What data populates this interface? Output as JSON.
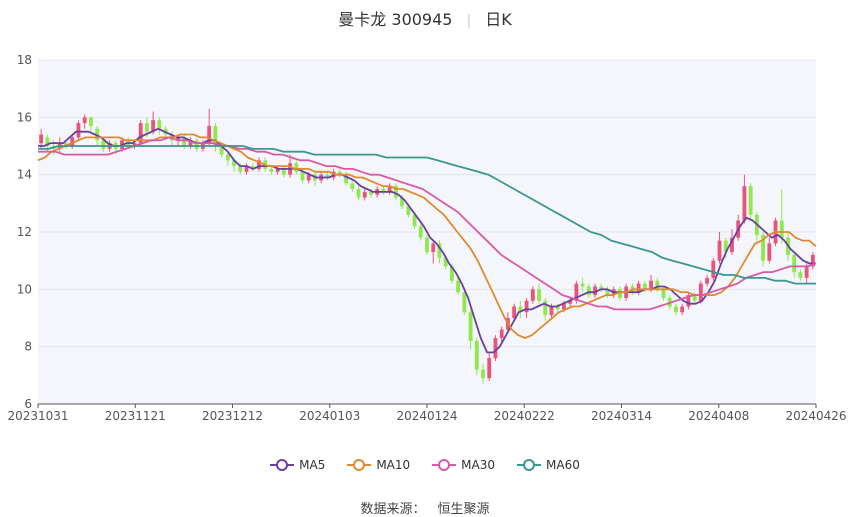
{
  "title": {
    "name": "曼卡龙 300945",
    "period": "日K"
  },
  "chart_data": {
    "type": "candlestick",
    "x_ticks": [
      "20231031",
      "20231121",
      "20231212",
      "20240103",
      "20240124",
      "20240222",
      "20240314",
      "20240408",
      "20240426"
    ],
    "ylim": [
      6,
      18
    ],
    "y_ticks": [
      "6",
      "8",
      "10",
      "12",
      "14",
      "16",
      "18"
    ],
    "grid": true,
    "legend_position": "bottom",
    "up_color": "#e8557b",
    "down_color": "#8ee84e",
    "candles": [
      [
        15.1,
        15.4,
        15.6,
        14.9
      ],
      [
        15.3,
        15.0,
        15.4,
        14.8
      ],
      [
        15.0,
        14.9,
        15.2,
        14.7
      ],
      [
        14.9,
        15.1,
        15.3,
        14.8
      ],
      [
        15.1,
        15.0,
        15.2,
        14.9
      ],
      [
        15.0,
        15.3,
        15.4,
        14.9
      ],
      [
        15.3,
        15.8,
        15.9,
        15.2
      ],
      [
        15.8,
        16.0,
        16.1,
        15.6
      ],
      [
        16.0,
        15.7,
        16.0,
        15.5
      ],
      [
        15.6,
        15.2,
        15.7,
        15.0
      ],
      [
        15.2,
        14.9,
        15.3,
        14.8
      ],
      [
        14.9,
        15.1,
        15.2,
        14.8
      ],
      [
        15.1,
        14.9,
        15.2,
        14.7
      ],
      [
        14.9,
        15.2,
        15.3,
        14.8
      ],
      [
        15.2,
        15.0,
        15.3,
        14.9
      ],
      [
        15.0,
        15.1,
        15.2,
        14.9
      ],
      [
        15.1,
        15.8,
        15.9,
        15.0
      ],
      [
        15.8,
        15.5,
        16.0,
        15.3
      ],
      [
        15.5,
        15.9,
        16.2,
        15.4
      ],
      [
        15.9,
        15.6,
        16.0,
        15.4
      ],
      [
        15.6,
        15.4,
        15.7,
        15.2
      ],
      [
        15.4,
        15.2,
        15.5,
        15.0
      ],
      [
        15.2,
        15.3,
        15.4,
        15.0
      ],
      [
        15.3,
        15.0,
        15.4,
        14.9
      ],
      [
        15.0,
        15.2,
        15.3,
        14.9
      ],
      [
        15.2,
        14.9,
        15.3,
        14.8
      ],
      [
        14.9,
        15.1,
        15.2,
        14.8
      ],
      [
        15.1,
        15.7,
        16.3,
        15.0
      ],
      [
        15.7,
        15.0,
        15.8,
        14.8
      ],
      [
        15.0,
        14.7,
        15.1,
        14.6
      ],
      [
        14.7,
        14.5,
        14.8,
        14.3
      ],
      [
        14.5,
        14.3,
        14.6,
        14.1
      ],
      [
        14.3,
        14.1,
        14.4,
        14.0
      ],
      [
        14.1,
        14.3,
        14.4,
        14.0
      ],
      [
        14.3,
        14.2,
        14.4,
        14.1
      ],
      [
        14.2,
        14.5,
        14.6,
        14.1
      ],
      [
        14.5,
        14.2,
        14.6,
        14.1
      ],
      [
        14.2,
        14.1,
        14.3,
        14.0
      ],
      [
        14.1,
        14.2,
        14.3,
        14.0
      ],
      [
        14.2,
        14.0,
        14.3,
        13.9
      ],
      [
        14.0,
        14.4,
        14.7,
        13.9
      ],
      [
        14.4,
        14.1,
        14.5,
        14.0
      ],
      [
        14.1,
        13.8,
        14.2,
        13.7
      ],
      [
        13.8,
        14.0,
        14.1,
        13.7
      ],
      [
        14.0,
        13.8,
        14.1,
        13.6
      ],
      [
        13.8,
        14.0,
        14.1,
        13.7
      ],
      [
        14.0,
        13.9,
        14.1,
        13.8
      ],
      [
        13.9,
        14.1,
        14.2,
        13.8
      ],
      [
        14.1,
        14.0,
        14.2,
        13.9
      ],
      [
        14.0,
        13.7,
        14.1,
        13.6
      ],
      [
        13.7,
        13.5,
        13.8,
        13.4
      ],
      [
        13.5,
        13.2,
        13.6,
        13.1
      ],
      [
        13.2,
        13.4,
        13.5,
        13.1
      ],
      [
        13.4,
        13.3,
        13.5,
        13.2
      ],
      [
        13.3,
        13.5,
        13.6,
        13.2
      ],
      [
        13.5,
        13.4,
        13.6,
        13.3
      ],
      [
        13.4,
        13.6,
        13.7,
        13.3
      ],
      [
        13.6,
        13.2,
        13.7,
        13.1
      ],
      [
        13.2,
        12.9,
        13.3,
        12.8
      ],
      [
        12.9,
        12.6,
        13.0,
        12.5
      ],
      [
        12.6,
        12.2,
        12.7,
        12.1
      ],
      [
        12.2,
        11.8,
        12.3,
        11.7
      ],
      [
        11.8,
        11.3,
        11.9,
        11.2
      ],
      [
        11.3,
        11.6,
        11.7,
        10.9
      ],
      [
        11.6,
        11.1,
        11.7,
        10.9
      ],
      [
        11.1,
        10.8,
        11.2,
        10.7
      ],
      [
        10.8,
        10.3,
        10.9,
        10.2
      ],
      [
        10.3,
        9.9,
        10.4,
        9.8
      ],
      [
        9.9,
        9.2,
        10.0,
        9.1
      ],
      [
        9.2,
        8.2,
        9.3,
        7.9
      ],
      [
        8.2,
        7.2,
        8.3,
        7.0
      ],
      [
        7.2,
        6.9,
        7.4,
        6.7
      ],
      [
        6.9,
        7.6,
        7.8,
        6.8
      ],
      [
        7.6,
        8.3,
        8.4,
        7.5
      ],
      [
        8.3,
        8.6,
        8.7,
        8.1
      ],
      [
        8.6,
        9.0,
        9.2,
        8.5
      ],
      [
        9.0,
        9.4,
        9.5,
        8.9
      ],
      [
        9.4,
        9.2,
        9.6,
        9.0
      ],
      [
        9.2,
        9.6,
        9.7,
        9.0
      ],
      [
        9.6,
        10.0,
        10.1,
        9.5
      ],
      [
        10.0,
        9.6,
        10.2,
        9.5
      ],
      [
        9.6,
        9.1,
        9.7,
        8.9
      ],
      [
        9.1,
        9.4,
        9.5,
        9.0
      ],
      [
        9.4,
        9.3,
        9.5,
        9.2
      ],
      [
        9.3,
        9.5,
        9.6,
        9.2
      ],
      [
        9.5,
        9.6,
        9.7,
        9.4
      ],
      [
        9.6,
        10.2,
        10.3,
        9.5
      ],
      [
        10.2,
        10.1,
        10.4,
        9.9
      ],
      [
        10.1,
        9.8,
        10.2,
        9.7
      ],
      [
        9.8,
        10.1,
        10.2,
        9.7
      ],
      [
        10.1,
        10.0,
        10.2,
        9.9
      ],
      [
        10.0,
        9.8,
        10.1,
        9.7
      ],
      [
        9.8,
        10.0,
        10.1,
        9.7
      ],
      [
        10.0,
        9.7,
        10.1,
        9.6
      ],
      [
        9.7,
        10.1,
        10.2,
        9.6
      ],
      [
        10.1,
        9.9,
        10.2,
        9.8
      ],
      [
        9.9,
        10.2,
        10.3,
        9.8
      ],
      [
        10.2,
        10.0,
        10.3,
        9.9
      ],
      [
        10.0,
        10.3,
        10.5,
        9.9
      ],
      [
        10.3,
        10.0,
        10.4,
        9.9
      ],
      [
        10.0,
        9.7,
        10.1,
        9.6
      ],
      [
        9.7,
        9.4,
        9.8,
        9.3
      ],
      [
        9.4,
        9.2,
        9.5,
        9.1
      ],
      [
        9.2,
        9.4,
        9.5,
        9.1
      ],
      [
        9.4,
        9.8,
        9.9,
        9.3
      ],
      [
        9.8,
        9.6,
        9.9,
        9.5
      ],
      [
        9.6,
        10.2,
        10.3,
        9.5
      ],
      [
        10.2,
        10.4,
        10.5,
        10.1
      ],
      [
        10.4,
        11.0,
        11.1,
        10.3
      ],
      [
        11.0,
        11.7,
        12.0,
        10.9
      ],
      [
        11.7,
        11.3,
        11.8,
        11.1
      ],
      [
        11.3,
        11.8,
        12.1,
        11.2
      ],
      [
        11.8,
        12.4,
        12.6,
        11.7
      ],
      [
        12.4,
        13.6,
        14.0,
        12.3
      ],
      [
        13.6,
        12.6,
        13.7,
        12.4
      ],
      [
        12.6,
        11.9,
        12.7,
        11.7
      ],
      [
        11.9,
        11.0,
        12.0,
        10.8
      ],
      [
        11.0,
        11.6,
        11.8,
        10.9
      ],
      [
        11.6,
        12.4,
        12.5,
        11.5
      ],
      [
        12.4,
        11.8,
        13.5,
        11.6
      ],
      [
        11.8,
        11.2,
        12.0,
        11.0
      ],
      [
        11.2,
        10.6,
        11.3,
        10.4
      ],
      [
        10.6,
        10.4,
        10.7,
        10.3
      ],
      [
        10.4,
        10.8,
        10.9,
        10.2
      ],
      [
        10.8,
        11.2,
        11.3,
        10.7
      ]
    ],
    "series": [
      {
        "name": "MA5",
        "color": "#6b3fa0",
        "values": [
          15.0,
          15.0,
          15.1,
          15.1,
          15.1,
          15.3,
          15.5,
          15.5,
          15.5,
          15.4,
          15.3,
          15.1,
          15.0,
          15.0,
          15.1,
          15.1,
          15.3,
          15.4,
          15.5,
          15.6,
          15.5,
          15.4,
          15.3,
          15.3,
          15.2,
          15.1,
          15.1,
          15.2,
          15.2,
          15.0,
          14.8,
          14.5,
          14.3,
          14.3,
          14.2,
          14.3,
          14.3,
          14.3,
          14.2,
          14.2,
          14.2,
          14.2,
          14.1,
          14.0,
          13.9,
          13.9,
          13.9,
          14.0,
          14.0,
          13.9,
          13.8,
          13.6,
          13.5,
          13.4,
          13.4,
          13.4,
          13.4,
          13.3,
          13.1,
          12.8,
          12.5,
          12.2,
          11.8,
          11.6,
          11.3,
          10.9,
          10.6,
          10.2,
          9.7,
          9.0,
          8.3,
          7.8,
          7.8,
          8.0,
          8.4,
          8.8,
          9.2,
          9.3,
          9.3,
          9.4,
          9.5,
          9.4,
          9.4,
          9.5,
          9.6,
          9.7,
          9.8,
          9.9,
          9.9,
          10.0,
          10.0,
          9.9,
          9.9,
          9.9,
          9.9,
          9.9,
          10.0,
          10.0,
          10.1,
          10.1,
          10.0,
          9.8,
          9.6,
          9.5,
          9.5,
          9.6,
          9.9,
          10.3,
          10.9,
          11.4,
          11.8,
          12.2,
          12.5,
          12.4,
          12.2,
          12.0,
          11.8,
          11.9,
          11.7,
          11.4,
          11.2,
          11.0,
          10.9,
          10.9
        ]
      },
      {
        "name": "MA10",
        "color": "#e08a2e",
        "values": [
          14.5,
          14.6,
          14.8,
          14.9,
          15.0,
          15.1,
          15.2,
          15.3,
          15.3,
          15.3,
          15.3,
          15.3,
          15.3,
          15.2,
          15.2,
          15.2,
          15.2,
          15.2,
          15.3,
          15.3,
          15.3,
          15.4,
          15.4,
          15.4,
          15.3,
          15.3,
          15.2,
          15.1,
          15.0,
          14.9,
          14.8,
          14.6,
          14.5,
          14.4,
          14.3,
          14.3,
          14.3,
          14.3,
          14.2,
          14.2,
          14.2,
          14.1,
          14.1,
          14.1,
          14.0,
          14.0,
          14.0,
          13.9,
          13.9,
          13.8,
          13.7,
          13.6,
          13.6,
          13.5,
          13.5,
          13.4,
          13.3,
          13.2,
          13.0,
          12.8,
          12.6,
          12.3,
          12.0,
          11.7,
          11.4,
          11.0,
          10.5,
          10.0,
          9.5,
          9.0,
          8.6,
          8.4,
          8.3,
          8.4,
          8.6,
          8.8,
          9.0,
          9.2,
          9.3,
          9.4,
          9.4,
          9.5,
          9.6,
          9.7,
          9.8,
          9.8,
          9.9,
          9.9,
          10.0,
          10.0,
          10.0,
          10.0,
          10.0,
          10.0,
          10.0,
          9.9,
          9.9,
          9.8,
          9.8,
          9.8,
          9.8,
          9.9,
          10.1,
          10.4,
          10.8,
          11.2,
          11.6,
          11.7,
          11.9,
          12.0,
          12.0,
          12.0,
          11.8,
          11.7,
          11.7,
          11.5
        ]
      },
      {
        "name": "MA30",
        "color": "#d85aa6",
        "values": [
          14.8,
          14.8,
          14.8,
          14.7,
          14.7,
          14.7,
          14.7,
          14.7,
          14.7,
          14.8,
          14.9,
          15.0,
          15.1,
          15.2,
          15.2,
          15.3,
          15.2,
          15.2,
          15.1,
          15.1,
          15.1,
          15.0,
          15.0,
          14.9,
          14.9,
          14.8,
          14.8,
          14.7,
          14.7,
          14.6,
          14.5,
          14.5,
          14.4,
          14.3,
          14.3,
          14.2,
          14.2,
          14.1,
          14.0,
          14.0,
          13.9,
          13.8,
          13.7,
          13.6,
          13.5,
          13.3,
          13.1,
          12.9,
          12.7,
          12.4,
          12.1,
          11.8,
          11.5,
          11.2,
          11.0,
          10.8,
          10.6,
          10.4,
          10.2,
          10.0,
          9.8,
          9.7,
          9.6,
          9.5,
          9.4,
          9.4,
          9.3,
          9.3,
          9.3,
          9.3,
          9.3,
          9.4,
          9.5,
          9.6,
          9.7,
          9.8,
          9.8,
          9.9,
          10.0,
          10.1,
          10.2,
          10.4,
          10.5,
          10.6,
          10.6,
          10.7,
          10.8,
          10.8,
          10.8,
          10.9
        ]
      },
      {
        "name": "MA60",
        "color": "#3a9690",
        "values": [
          14.9,
          14.9,
          15.0,
          15.0,
          15.0,
          15.0,
          15.0,
          15.0,
          15.0,
          15.0,
          15.0,
          15.0,
          15.0,
          15.0,
          15.0,
          15.0,
          15.0,
          15.0,
          15.0,
          15.0,
          15.0,
          14.9,
          14.9,
          14.9,
          14.8,
          14.8,
          14.8,
          14.7,
          14.7,
          14.7,
          14.7,
          14.7,
          14.7,
          14.7,
          14.6,
          14.6,
          14.6,
          14.6,
          14.6,
          14.5,
          14.4,
          14.3,
          14.2,
          14.1,
          14.0,
          13.8,
          13.6,
          13.4,
          13.2,
          13.0,
          12.8,
          12.6,
          12.4,
          12.2,
          12.0,
          11.9,
          11.7,
          11.6,
          11.5,
          11.4,
          11.3,
          11.1,
          11.0,
          10.9,
          10.8,
          10.7,
          10.6,
          10.5,
          10.5,
          10.4,
          10.4,
          10.4,
          10.3,
          10.3,
          10.2,
          10.2,
          10.2
        ]
      }
    ]
  },
  "legend": [
    {
      "name": "MA5",
      "color": "#6b3fa0"
    },
    {
      "name": "MA10",
      "color": "#e08a2e"
    },
    {
      "name": "MA30",
      "color": "#d85aa6"
    },
    {
      "name": "MA60",
      "color": "#3a9690"
    }
  ],
  "source": {
    "label": "数据来源：",
    "provider": "恒生聚源"
  }
}
